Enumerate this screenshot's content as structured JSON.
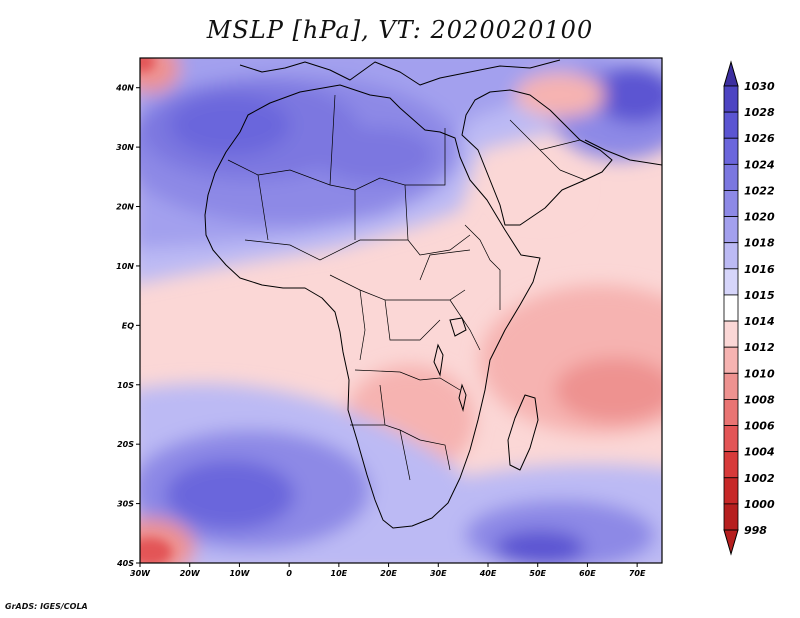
{
  "title": "MSLP [hPa], VT: 2020020100",
  "credit": "GrADS: IGES/COLA",
  "map": {
    "lon_range": [
      -30,
      75
    ],
    "lat_range": [
      -40,
      45
    ],
    "lon_ticks": [
      {
        "v": -30,
        "label": "30W"
      },
      {
        "v": -20,
        "label": "20W"
      },
      {
        "v": -10,
        "label": "10W"
      },
      {
        "v": 0,
        "label": "0"
      },
      {
        "v": 10,
        "label": "10E"
      },
      {
        "v": 20,
        "label": "20E"
      },
      {
        "v": 30,
        "label": "30E"
      },
      {
        "v": 40,
        "label": "40E"
      },
      {
        "v": 50,
        "label": "50E"
      },
      {
        "v": 60,
        "label": "60E"
      },
      {
        "v": 70,
        "label": "70E"
      }
    ],
    "lat_ticks": [
      {
        "v": 40,
        "label": "40N"
      },
      {
        "v": 30,
        "label": "30N"
      },
      {
        "v": 20,
        "label": "20N"
      },
      {
        "v": 10,
        "label": "10N"
      },
      {
        "v": 0,
        "label": "EQ"
      },
      {
        "v": -10,
        "label": "10S"
      },
      {
        "v": -20,
        "label": "20S"
      },
      {
        "v": -30,
        "label": "30S"
      },
      {
        "v": -40,
        "label": "40S"
      }
    ]
  },
  "colorbar": {
    "levels": [
      "1030",
      "1028",
      "1026",
      "1024",
      "1022",
      "1020",
      "1018",
      "1016",
      "1015",
      "1014",
      "1012",
      "1010",
      "1008",
      "1006",
      "1004",
      "1002",
      "1000",
      "998"
    ],
    "colors": [
      "#3d2fa0",
      "#4d44c2",
      "#5b55d2",
      "#6b66dc",
      "#7b77e0",
      "#8d89e6",
      "#a3a0ee",
      "#bcbaf4",
      "#d6d5fa",
      "#ffffff",
      "#fbd7d6",
      "#f6b3b1",
      "#ee9290",
      "#e97473",
      "#e35556",
      "#d73a3a",
      "#c72828",
      "#b61f1f"
    ]
  },
  "legend_colors": {
    "high_1030": "#3d2fa0",
    "high_1024": "#6b66dc",
    "high_1020": "#8d89e6",
    "high_1016": "#bcbaf4",
    "neutral_1014": "#ffffff",
    "low_1012": "#fbd7d6",
    "low_1010": "#f6b3b1",
    "low_1008": "#ee9290",
    "low_1004": "#e35556",
    "low_1000": "#c72828"
  }
}
